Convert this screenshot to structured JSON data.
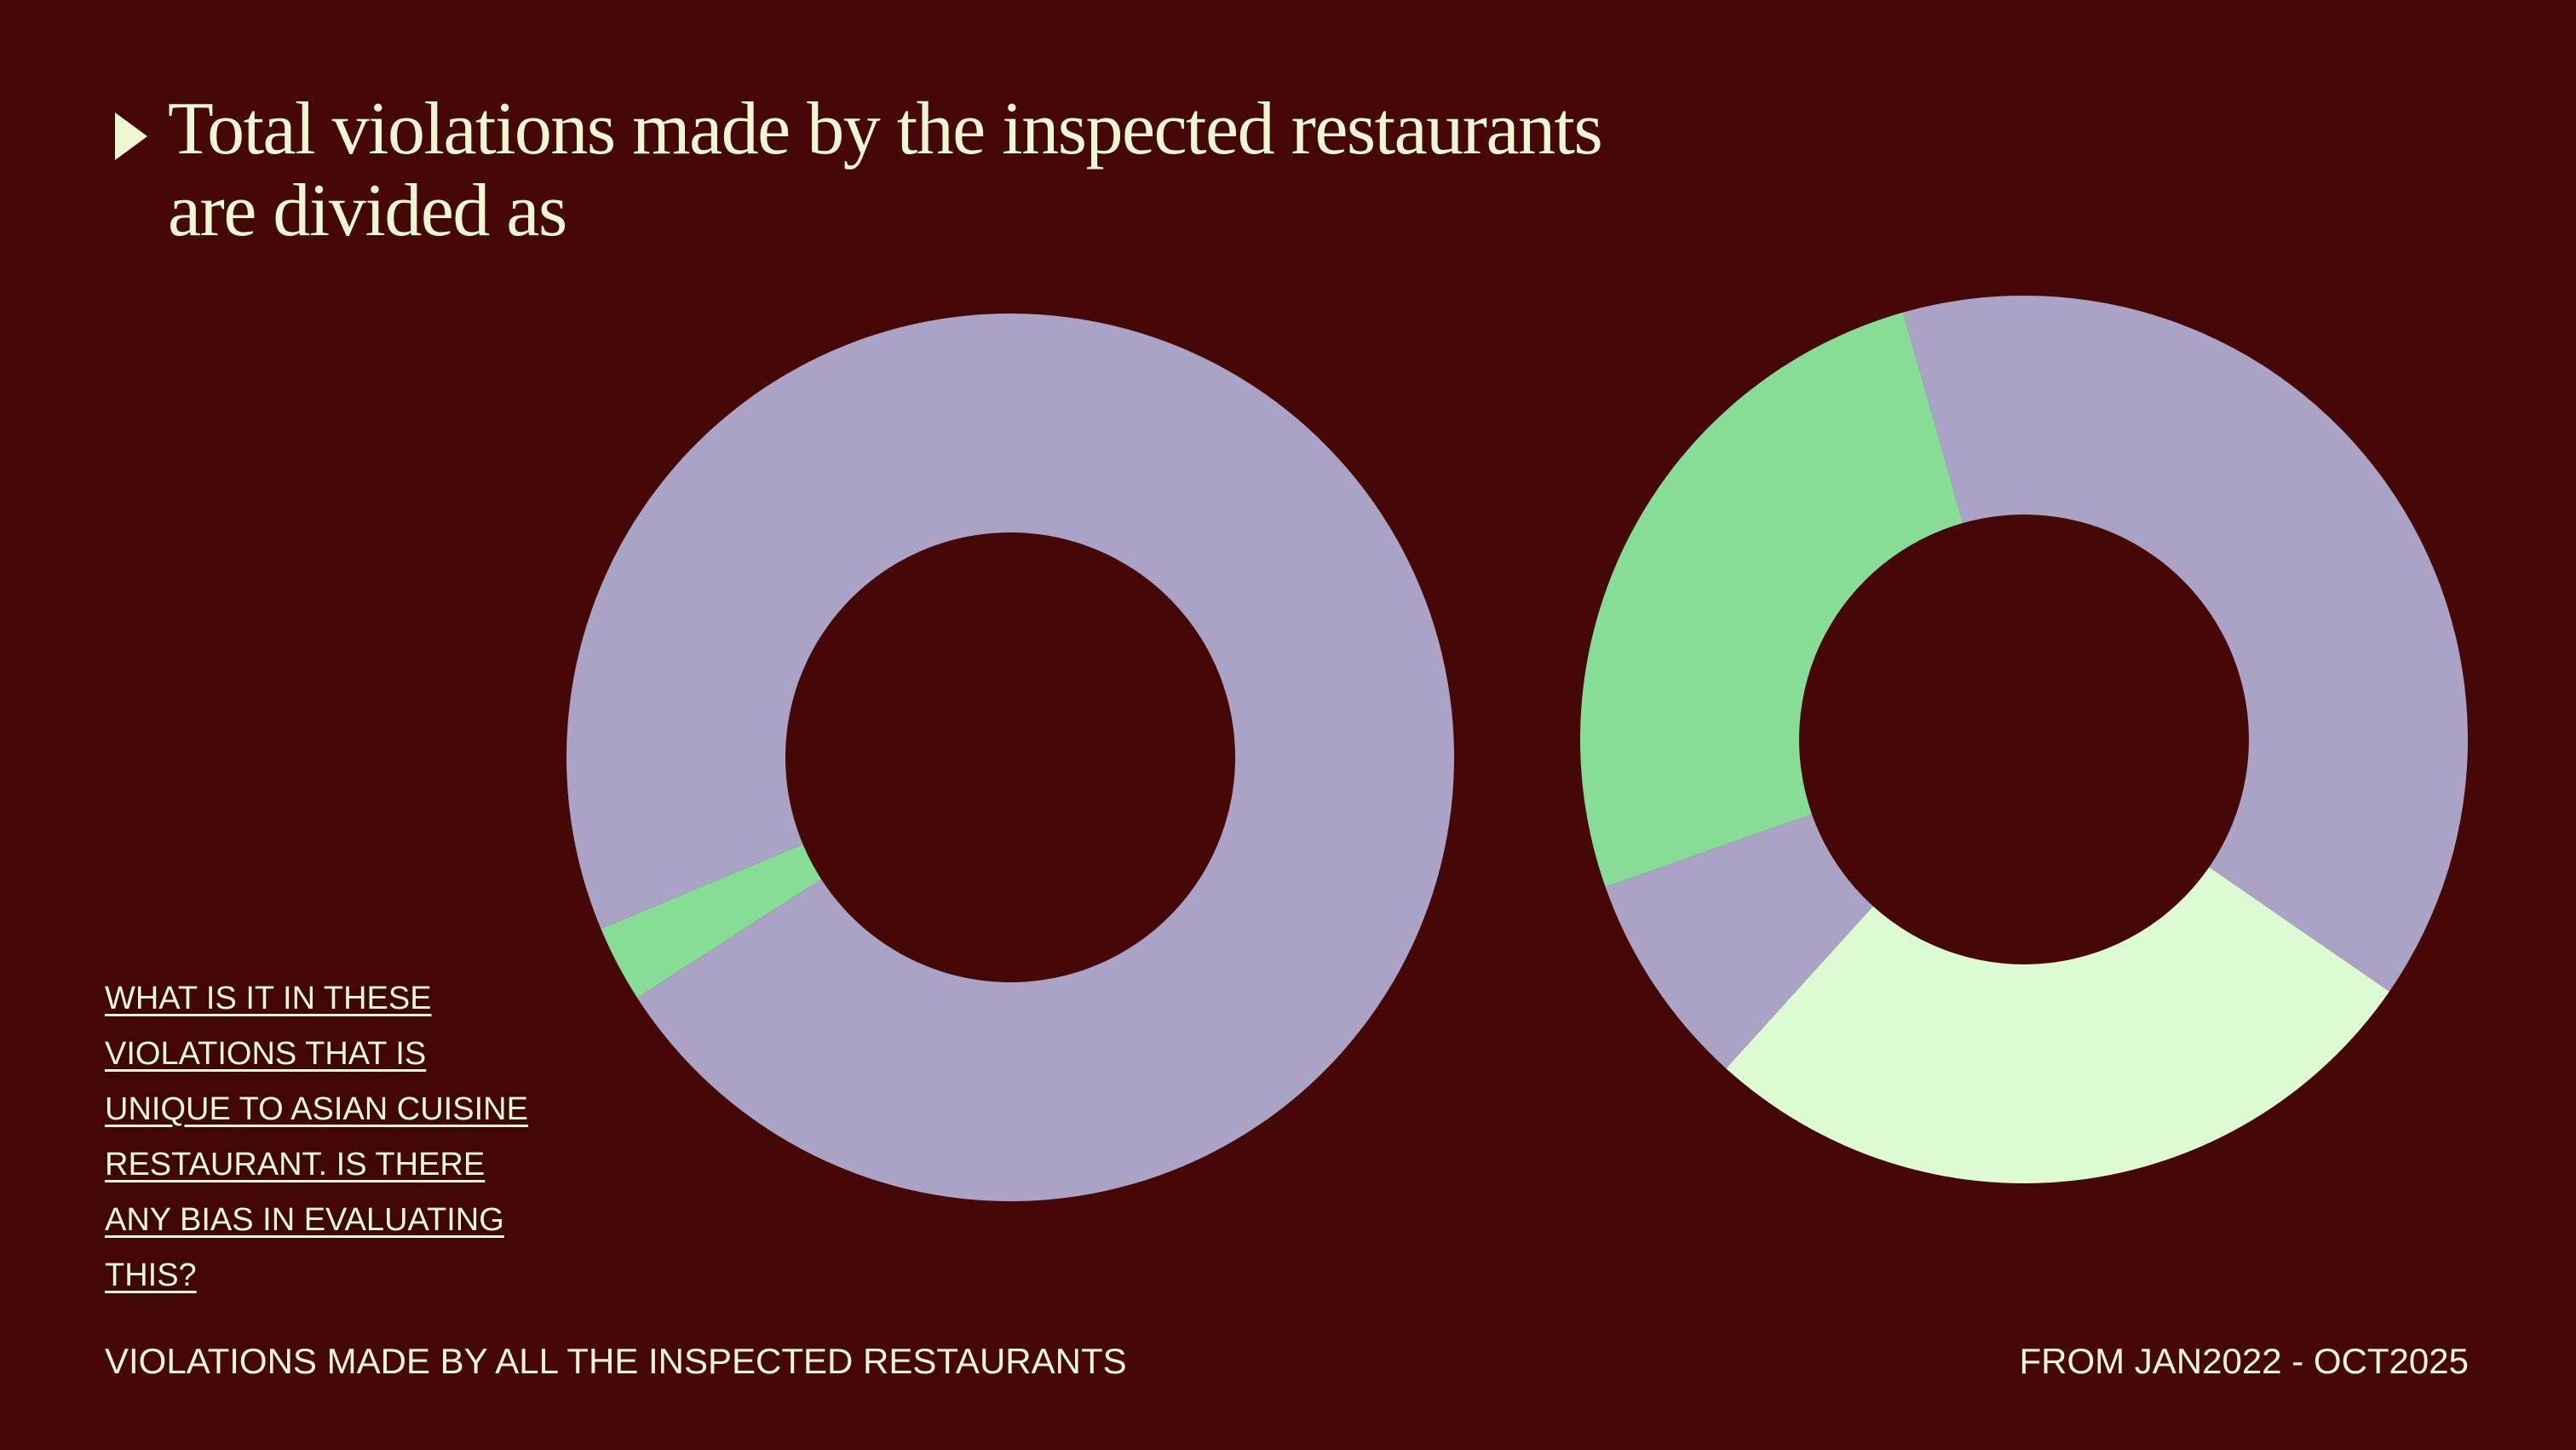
{
  "header": {
    "title": "Total violations made by the inspected restaurants are divided as"
  },
  "question": "WHAT IS IT IN THESE VIOLATIONS THAT IS UNIQUE TO ASIAN CUISINE RESTAURANT. IS THERE ANY BIAS IN EVALUATING THIS?",
  "footer": {
    "left": "VIOLATIONS MADE BY ALL THE INSPECTED RESTAURANTS",
    "right": "FROM JAN2022 - OCT2025"
  },
  "chart_data": [
    {
      "type": "donut",
      "categories": [
        null,
        null
      ],
      "values": [
        2.8,
        97.2
      ],
      "colors": [
        "#88dd96",
        "#aaa3c6"
      ],
      "rotation": 237.2
    },
    {
      "type": "donut",
      "categories": [
        null,
        null,
        null,
        null
      ],
      "values": [
        39,
        27.1,
        7.9,
        26
      ],
      "colors": [
        "#aaa3c6",
        "#ddfbd3",
        "#aaa3c6",
        "#88dd96"
      ],
      "rotation": 344.2
    }
  ]
}
